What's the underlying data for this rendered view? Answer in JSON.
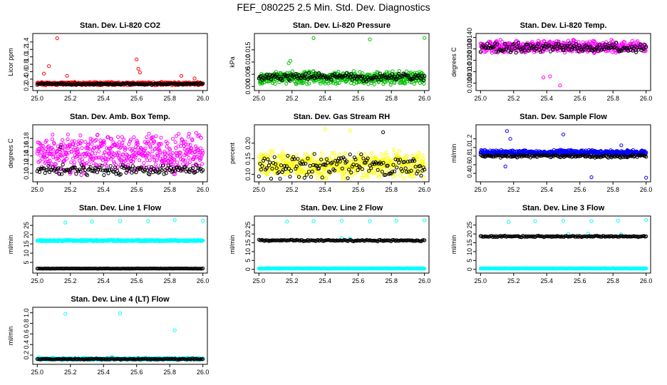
{
  "figure_title": "FEF_080225  2.5 Min. Std. Dev. Diagnostics",
  "chart_data": [
    {
      "type": "scatter",
      "title": "Stan. Dev. Li-820 CO2",
      "xlabel": "",
      "ylabel": "Licor ppm",
      "xlim": [
        24.99,
        26.01
      ],
      "ylim": [
        0.17,
        1.55
      ],
      "xticks": [
        25.0,
        25.2,
        25.4,
        25.6,
        25.8,
        26.0
      ],
      "xtick_labels": [
        "25.0",
        "25.2",
        "25.4",
        "25.6",
        "25.8",
        "26.0"
      ],
      "yticks": [
        0.2,
        0.4,
        0.6,
        0.8,
        1.0,
        1.2,
        1.4
      ],
      "ytick_labels": [
        "0.2",
        "0.4",
        "0.6",
        "0.8",
        "1.0",
        "1.2",
        "1.4"
      ],
      "series": [
        {
          "name": "colored",
          "color": "#ff0000",
          "base": 0.28,
          "spread": 0.05,
          "seed": 1,
          "spikes": [
            [
              25.12,
              1.5
            ],
            [
              25.6,
              0.93
            ],
            [
              25.07,
              0.75
            ],
            [
              25.61,
              0.68
            ],
            [
              25.62,
              0.58
            ],
            [
              25.18,
              0.49
            ],
            [
              25.04,
              0.55
            ],
            [
              25.87,
              0.49
            ],
            [
              25.95,
              0.42
            ]
          ]
        },
        {
          "name": "black",
          "color": "#000000",
          "base": 0.27,
          "spread": 0.03,
          "seed": 2,
          "spikes": []
        }
      ]
    },
    {
      "type": "scatter",
      "title": "Stan. Dev. Li-820 Pressure",
      "xlabel": "",
      "ylabel": "kPa",
      "xlim": [
        24.99,
        26.01
      ],
      "ylim": [
        -0.0005,
        0.0205
      ],
      "xticks": [
        25.0,
        25.2,
        25.4,
        25.6,
        25.8,
        26.0
      ],
      "xtick_labels": [
        "25.0",
        "25.2",
        "25.4",
        "25.6",
        "25.8",
        "26.0"
      ],
      "yticks": [
        0.0,
        0.005,
        0.01,
        0.015
      ],
      "ytick_labels": [
        "0.000",
        "0.005",
        "0.010",
        "0.015"
      ],
      "series": [
        {
          "name": "colored",
          "color": "#00c000",
          "base": 0.0035,
          "spread": 0.003,
          "seed": 3,
          "spikes": [
            [
              25.33,
              0.0198
            ],
            [
              25.67,
              0.0193
            ],
            [
              26.0,
              0.0199
            ],
            [
              25.18,
              0.0095
            ],
            [
              25.19,
              0.0105
            ]
          ]
        },
        {
          "name": "black",
          "color": "#000000",
          "base": 0.0038,
          "spread": 0.0018,
          "seed": 4,
          "spikes": []
        }
      ]
    },
    {
      "type": "scatter",
      "title": "Stan. Dev. Li-820 Temp.",
      "xlabel": "",
      "ylabel": "degrees C",
      "xlim": [
        24.99,
        26.01
      ],
      "ylim": [
        0.0096,
        0.0141
      ],
      "xticks": [
        25.0,
        25.2,
        25.4,
        25.6,
        25.8,
        26.0
      ],
      "xtick_labels": [
        "25.0",
        "25.2",
        "25.4",
        "25.6",
        "25.8",
        "26.0"
      ],
      "yticks": [
        0.01,
        0.011,
        0.012,
        0.013,
        0.014
      ],
      "ytick_labels": [
        "0.0100",
        "0.0110",
        "0.0120",
        "0.0130",
        "0.0140"
      ],
      "series": [
        {
          "name": "colored",
          "color": "#ff00ff",
          "base": 0.0132,
          "spread": 0.0006,
          "seed": 5,
          "spikes": [
            [
              25.48,
              0.0098
            ],
            [
              25.38,
              0.0105
            ],
            [
              25.42,
              0.0106
            ],
            [
              25.12,
              0.0138
            ],
            [
              25.56,
              0.0138
            ]
          ]
        },
        {
          "name": "black",
          "color": "#000000",
          "base": 0.0131,
          "spread": 0.0005,
          "seed": 6,
          "spikes": []
        }
      ]
    },
    {
      "type": "scatter",
      "title": "Stan. Dev. Amb. Box Temp.",
      "xlabel": "",
      "ylabel": "degrees C",
      "xlim": [
        24.99,
        26.01
      ],
      "ylim": [
        0.087,
        0.205
      ],
      "xticks": [
        25.0,
        25.2,
        25.4,
        25.6,
        25.8,
        26.0
      ],
      "xtick_labels": [
        "25.0",
        "25.2",
        "25.4",
        "25.6",
        "25.8",
        "26.0"
      ],
      "yticks": [
        0.1,
        0.12,
        0.14,
        0.16,
        0.18
      ],
      "ytick_labels": [
        "0.10",
        "0.12",
        "0.14",
        "0.16",
        "0.18"
      ],
      "series": [
        {
          "name": "colored",
          "color": "#ff00ff",
          "base": 0.145,
          "spread": 0.05,
          "seed": 7,
          "spikes": []
        },
        {
          "name": "black",
          "color": "#000000",
          "base": 0.108,
          "spread": 0.013,
          "seed": 8,
          "spikes": [
            [
              25.14,
              0.16
            ]
          ]
        }
      ]
    },
    {
      "type": "scatter",
      "title": "Stan. Dev. Gas Stream RH",
      "xlabel": "",
      "ylabel": "percent",
      "xlim": [
        24.99,
        26.01
      ],
      "ylim": [
        0.085,
        0.25
      ],
      "xticks": [
        25.0,
        25.2,
        25.4,
        25.6,
        25.8,
        26.0
      ],
      "xtick_labels": [
        "25.0",
        "25.2",
        "25.4",
        "25.6",
        "25.8",
        "26.0"
      ],
      "yticks": [
        0.1,
        0.15,
        0.2
      ],
      "ytick_labels": [
        "0.10",
        "0.15",
        "0.20"
      ],
      "series": [
        {
          "name": "colored",
          "color": "#ffff00",
          "base": 0.13,
          "spread": 0.05,
          "seed": 9,
          "spikes": [
            [
              25.4,
              0.245
            ],
            [
              25.55,
              0.24
            ]
          ]
        },
        {
          "name": "black",
          "color": "#000000",
          "base": 0.125,
          "spread": 0.045,
          "seed": 10,
          "spikes": [
            [
              25.75,
              0.235
            ]
          ]
        }
      ]
    },
    {
      "type": "scatter",
      "title": "Stan. Dev. Sample Flow",
      "xlabel": "",
      "ylabel": "ml/min",
      "xlim": [
        24.99,
        26.01
      ],
      "ylim": [
        0.27,
        1.46
      ],
      "xticks": [
        25.0,
        25.2,
        25.4,
        25.6,
        25.8,
        26.0
      ],
      "xtick_labels": [
        "25.0",
        "25.2",
        "25.4",
        "25.6",
        "25.8",
        "26.0"
      ],
      "yticks": [
        0.4,
        0.6,
        0.8,
        1.0,
        1.2
      ],
      "ytick_labels": [
        "0.4",
        "0.6",
        "0.8",
        "1.0",
        "1.2"
      ],
      "series": [
        {
          "name": "colored",
          "color": "#0000ff",
          "base": 0.88,
          "spread": 0.07,
          "seed": 11,
          "spikes": [
            [
              25.16,
              1.38
            ],
            [
              25.5,
              1.3
            ],
            [
              25.18,
              1.2
            ],
            [
              25.15,
              0.56
            ],
            [
              26.0,
              0.3
            ],
            [
              25.67,
              0.31
            ],
            [
              25.85,
              1.05
            ]
          ]
        },
        {
          "name": "black",
          "color": "#000000",
          "base": 0.8,
          "spread": 0.04,
          "seed": 12,
          "spikes": []
        }
      ]
    },
    {
      "type": "scatter",
      "title": "Stan. Dev. Line 1 Flow",
      "xlabel": "",
      "ylabel": "ml/min",
      "xlim": [
        24.99,
        26.01
      ],
      "ylim": [
        0.8,
        28.5
      ],
      "xticks": [
        25.0,
        25.2,
        25.4,
        25.6,
        25.8,
        26.0
      ],
      "xtick_labels": [
        "25.0",
        "25.2",
        "25.4",
        "25.6",
        "25.8",
        "26.0"
      ],
      "yticks": [
        5,
        10,
        15,
        20,
        25
      ],
      "ytick_labels": [
        "5",
        "10",
        "15",
        "20",
        "25"
      ],
      "series": [
        {
          "name": "colored",
          "color": "#00ffff",
          "base": 16.8,
          "spread": 0.4,
          "seed": 13,
          "spikes": [
            [
              25.17,
              26.5
            ],
            [
              25.33,
              27
            ],
            [
              25.5,
              27.4
            ],
            [
              25.67,
              27.3
            ],
            [
              25.83,
              27.8
            ],
            [
              26.0,
              27.5
            ]
          ]
        },
        {
          "name": "black",
          "color": "#000000",
          "base": 1.7,
          "spread": 0.1,
          "seed": 14,
          "spikes": []
        }
      ]
    },
    {
      "type": "scatter",
      "title": "Stan. Dev. Line 2 Flow",
      "xlabel": "",
      "ylabel": "ml/min",
      "xlim": [
        24.99,
        26.01
      ],
      "ylim": [
        -0.5,
        28.5
      ],
      "xticks": [
        25.0,
        25.2,
        25.4,
        25.6,
        25.8,
        26.0
      ],
      "xtick_labels": [
        "25.0",
        "25.2",
        "25.4",
        "25.6",
        "25.8",
        "26.0"
      ],
      "yticks": [
        0,
        5,
        10,
        15,
        20,
        25
      ],
      "ytick_labels": [
        "0",
        "5",
        "10",
        "15",
        "20",
        "25"
      ],
      "series": [
        {
          "name": "colored",
          "color": "#00ffff",
          "base": 0.5,
          "spread": 0.15,
          "seed": 15,
          "spikes": [
            [
              25.17,
              27
            ],
            [
              25.33,
              27.3
            ],
            [
              25.5,
              27.4
            ],
            [
              25.67,
              27.3
            ],
            [
              25.83,
              27.5
            ],
            [
              26.0,
              27.6
            ],
            [
              25.55,
              17.5
            ],
            [
              25.5,
              17.8
            ]
          ]
        },
        {
          "name": "black",
          "color": "#000000",
          "base": 16.3,
          "spread": 0.5,
          "seed": 16,
          "spikes": []
        }
      ]
    },
    {
      "type": "scatter",
      "title": "Stan. Dev. Line 3 Flow",
      "xlabel": "",
      "ylabel": "ml/min",
      "xlim": [
        24.99,
        26.01
      ],
      "ylim": [
        -0.5,
        28.5
      ],
      "xticks": [
        25.0,
        25.2,
        25.4,
        25.6,
        25.8,
        26.0
      ],
      "xtick_labels": [
        "25.0",
        "25.2",
        "25.4",
        "25.6",
        "25.8",
        "26.0"
      ],
      "yticks": [
        0,
        5,
        10,
        15,
        20,
        25
      ],
      "ytick_labels": [
        "0",
        "5",
        "10",
        "15",
        "20",
        "25"
      ],
      "series": [
        {
          "name": "colored",
          "color": "#00ffff",
          "base": 0.5,
          "spread": 0.15,
          "seed": 17,
          "spikes": [
            [
              25.17,
              26.8
            ],
            [
              25.33,
              27.2
            ],
            [
              25.5,
              27.4
            ],
            [
              25.67,
              27.3
            ],
            [
              25.83,
              27.5
            ],
            [
              26.0,
              27.8
            ],
            [
              25.53,
              20
            ],
            [
              25.65,
              20.2
            ],
            [
              25.85,
              19.8
            ]
          ]
        },
        {
          "name": "black",
          "color": "#000000",
          "base": 18.6,
          "spread": 0.5,
          "seed": 18,
          "spikes": []
        }
      ]
    },
    {
      "type": "scatter",
      "title": "Stan. Dev. Line 4 (LT) Flow",
      "xlabel": "",
      "ylabel": "ml/min",
      "xlim": [
        24.99,
        26.01
      ],
      "ylim": [
        0.08,
        1.05
      ],
      "xticks": [
        25.0,
        25.2,
        25.4,
        25.6,
        25.8,
        26.0
      ],
      "xtick_labels": [
        "25.0",
        "25.2",
        "25.4",
        "25.6",
        "25.8",
        "26.0"
      ],
      "yticks": [
        0.2,
        0.4,
        0.6,
        0.8,
        1.0
      ],
      "ytick_labels": [
        "0.2",
        "0.4",
        "0.6",
        "0.8",
        "1.0"
      ],
      "series": [
        {
          "name": "colored",
          "color": "#00ffff",
          "base": 0.13,
          "spread": 0.02,
          "seed": 19,
          "spikes": [
            [
              25.17,
              0.98
            ],
            [
              25.5,
              0.99
            ],
            [
              25.83,
              0.67
            ],
            [
              25.01,
              0.16
            ],
            [
              25.45,
              0.17
            ]
          ]
        },
        {
          "name": "black",
          "color": "#000000",
          "base": 0.125,
          "spread": 0.012,
          "seed": 20,
          "spikes": []
        }
      ]
    }
  ]
}
